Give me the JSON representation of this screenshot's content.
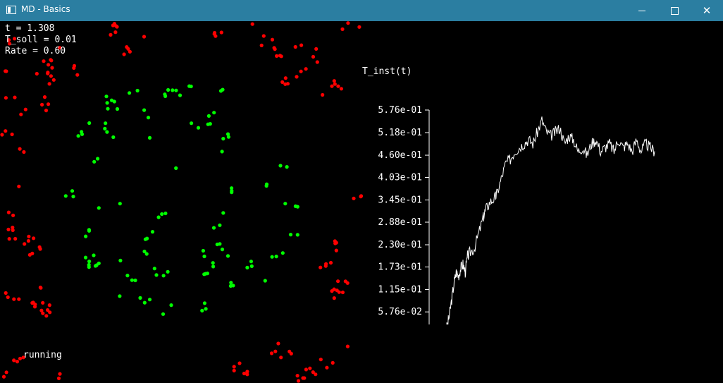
{
  "window": {
    "title": "MD - Basics",
    "titlebar_color": "#2b7ea1"
  },
  "overlay": {
    "time": "t = 1.308",
    "t_soll": "T_soll = 0.01",
    "rate": "Rate = 0.60",
    "status": "running"
  },
  "particles": {
    "outer_color": "#ff0000",
    "inner_color": "#00ff00"
  },
  "chart_data": {
    "type": "line",
    "title": "T_inst(t)",
    "y_tick_labels": [
      "5.76e-01",
      "5.18e-01",
      "4.60e-01",
      "4.03e-01",
      "3.45e-01",
      "2.88e-01",
      "2.30e-01",
      "1.73e-01",
      "1.15e-01",
      "5.76e-02"
    ],
    "y_tick_values": [
      0.576,
      0.518,
      0.46,
      0.403,
      0.345,
      0.288,
      0.23,
      0.173,
      0.115,
      0.0576
    ],
    "ylim": [
      0,
      0.576
    ],
    "xlim": [
      0,
      1
    ],
    "x_ticks_count": 10,
    "line_color": "#ffffff",
    "series": [
      {
        "x": [
          0,
          0.05,
          0.07,
          0.08,
          0.09,
          0.1,
          0.11,
          0.12,
          0.13,
          0.14,
          0.15,
          0.16,
          0.17,
          0.18,
          0.2,
          0.22,
          0.24,
          0.25,
          0.27,
          0.29,
          0.3,
          0.32,
          0.34,
          0.36,
          0.38,
          0.4,
          0.42,
          0.44,
          0.46,
          0.48,
          0.5,
          0.52,
          0.54,
          0.56,
          0.58,
          0.6,
          0.62,
          0.64,
          0.66,
          0.68,
          0.7,
          0.72,
          0.74,
          0.76,
          0.78,
          0.8,
          0.82,
          0.84,
          0.86,
          0.88,
          0.9,
          0.92,
          0.94,
          0.96,
          0.98,
          1.0
        ],
        "y": [
          0,
          0,
          0.005,
          0.02,
          0.05,
          0.09,
          0.13,
          0.16,
          0.15,
          0.17,
          0.18,
          0.16,
          0.2,
          0.21,
          0.22,
          0.26,
          0.3,
          0.32,
          0.34,
          0.35,
          0.36,
          0.4,
          0.44,
          0.45,
          0.47,
          0.48,
          0.49,
          0.5,
          0.49,
          0.52,
          0.55,
          0.52,
          0.51,
          0.52,
          0.53,
          0.49,
          0.51,
          0.5,
          0.47,
          0.48,
          0.46,
          0.49,
          0.5,
          0.47,
          0.48,
          0.49,
          0.47,
          0.5,
          0.48,
          0.49,
          0.47,
          0.5,
          0.47,
          0.49,
          0.48,
          0.47
        ]
      }
    ]
  }
}
